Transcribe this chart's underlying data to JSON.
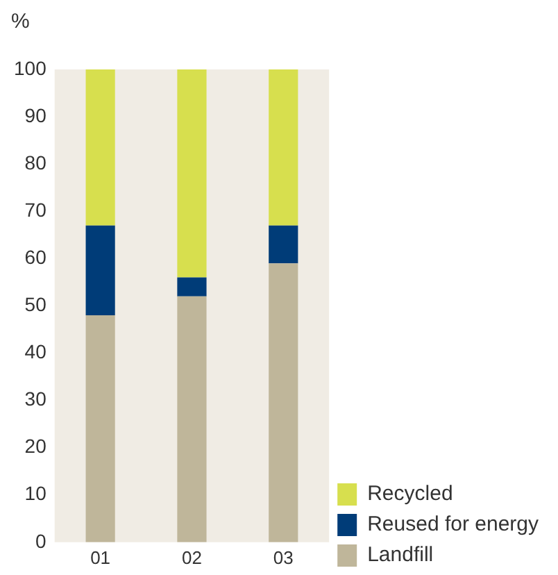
{
  "chart_data": {
    "type": "bar",
    "ylabel": "%",
    "categories": [
      "01",
      "02",
      "03"
    ],
    "stacked": true,
    "series": [
      {
        "name": "Landfill",
        "color": "#bfb69a",
        "values": [
          48,
          52,
          59
        ]
      },
      {
        "name": "Reused for energy",
        "color": "#003c78",
        "values": [
          19,
          4,
          8
        ]
      },
      {
        "name": "Recycled",
        "color": "#d7df4e",
        "values": [
          33,
          44,
          33
        ]
      }
    ],
    "ylim": [
      0,
      100
    ],
    "yticks": [
      0,
      10,
      20,
      30,
      40,
      50,
      60,
      70,
      80,
      90,
      100
    ],
    "grid": false,
    "legend": "bottom right"
  }
}
